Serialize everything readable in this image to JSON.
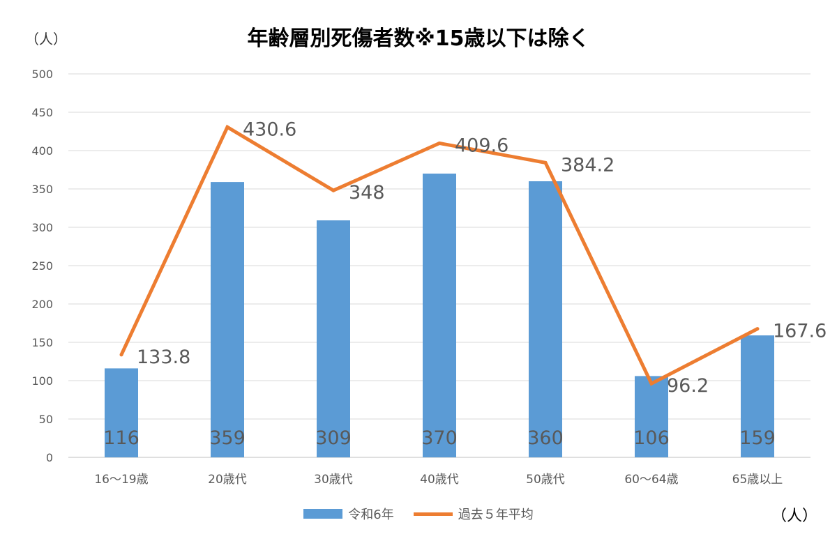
{
  "chart_data": {
    "type": "bar",
    "title": "年齢層別死傷者数※15歳以下は除く",
    "ylabel": "（人）",
    "unit_label": "（人）",
    "categories": [
      "16～19歳",
      "20歳代",
      "30歳代",
      "40歳代",
      "50歳代",
      "60～64歳",
      "65歳以上"
    ],
    "ylim": [
      0,
      500
    ],
    "yticks": [
      0,
      50,
      100,
      150,
      200,
      250,
      300,
      350,
      400,
      450,
      500
    ],
    "grid": true,
    "legend_position": "bottom",
    "series": [
      {
        "name": "令和6年",
        "type": "bar",
        "color": "#5B9BD5",
        "values": [
          116,
          359,
          309,
          370,
          360,
          106,
          159
        ],
        "labels": [
          "116",
          "359",
          "309",
          "370",
          "360",
          "106",
          "159"
        ]
      },
      {
        "name": "過去５年平均",
        "type": "line",
        "color": "#ED7D31",
        "values": [
          133.8,
          430.6,
          348,
          409.6,
          384.2,
          96.2,
          167.6
        ],
        "labels": [
          "133.8",
          "430.6",
          "348",
          "409.6",
          "384.2",
          "96.2",
          "167.6"
        ]
      }
    ]
  }
}
